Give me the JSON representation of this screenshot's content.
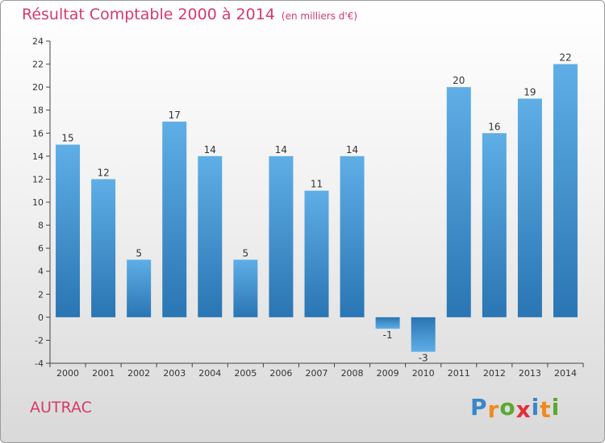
{
  "title": "Résultat Comptable 2000 à 2014",
  "subtitle": "(en milliers d'€)",
  "commune": "AUTRAC",
  "logo": {
    "text": "Proxiti",
    "letters": [
      "P",
      "r",
      "o",
      "x",
      "i",
      "t",
      "i"
    ],
    "colors": [
      "#3a86c8",
      "#f08a1e",
      "#59a832",
      "#e2303a",
      "#3a86c8",
      "#f08a1e",
      "#59a832"
    ]
  },
  "colors": {
    "bar_top": "#5faee6",
    "bar_bottom": "#2a75b3",
    "axis": "#444444",
    "label": "#333333",
    "title": "#d63a6a"
  },
  "chart_data": {
    "type": "bar",
    "title": "Résultat Comptable 2000 à 2014",
    "subtitle": "(en milliers d'€)",
    "xlabel": "",
    "ylabel": "",
    "categories": [
      "2000",
      "2001",
      "2002",
      "2003",
      "2004",
      "2005",
      "2006",
      "2007",
      "2008",
      "2009",
      "2010",
      "2011",
      "2012",
      "2013",
      "2014"
    ],
    "values": [
      15,
      12,
      5,
      17,
      14,
      5,
      14,
      11,
      14,
      -1,
      -3,
      20,
      16,
      19,
      22
    ],
    "ylim": [
      -4,
      24
    ],
    "yticks": [
      -4,
      -2,
      0,
      2,
      4,
      6,
      8,
      10,
      12,
      14,
      16,
      18,
      20,
      22,
      24
    ],
    "data_labels": true,
    "grid": false
  }
}
